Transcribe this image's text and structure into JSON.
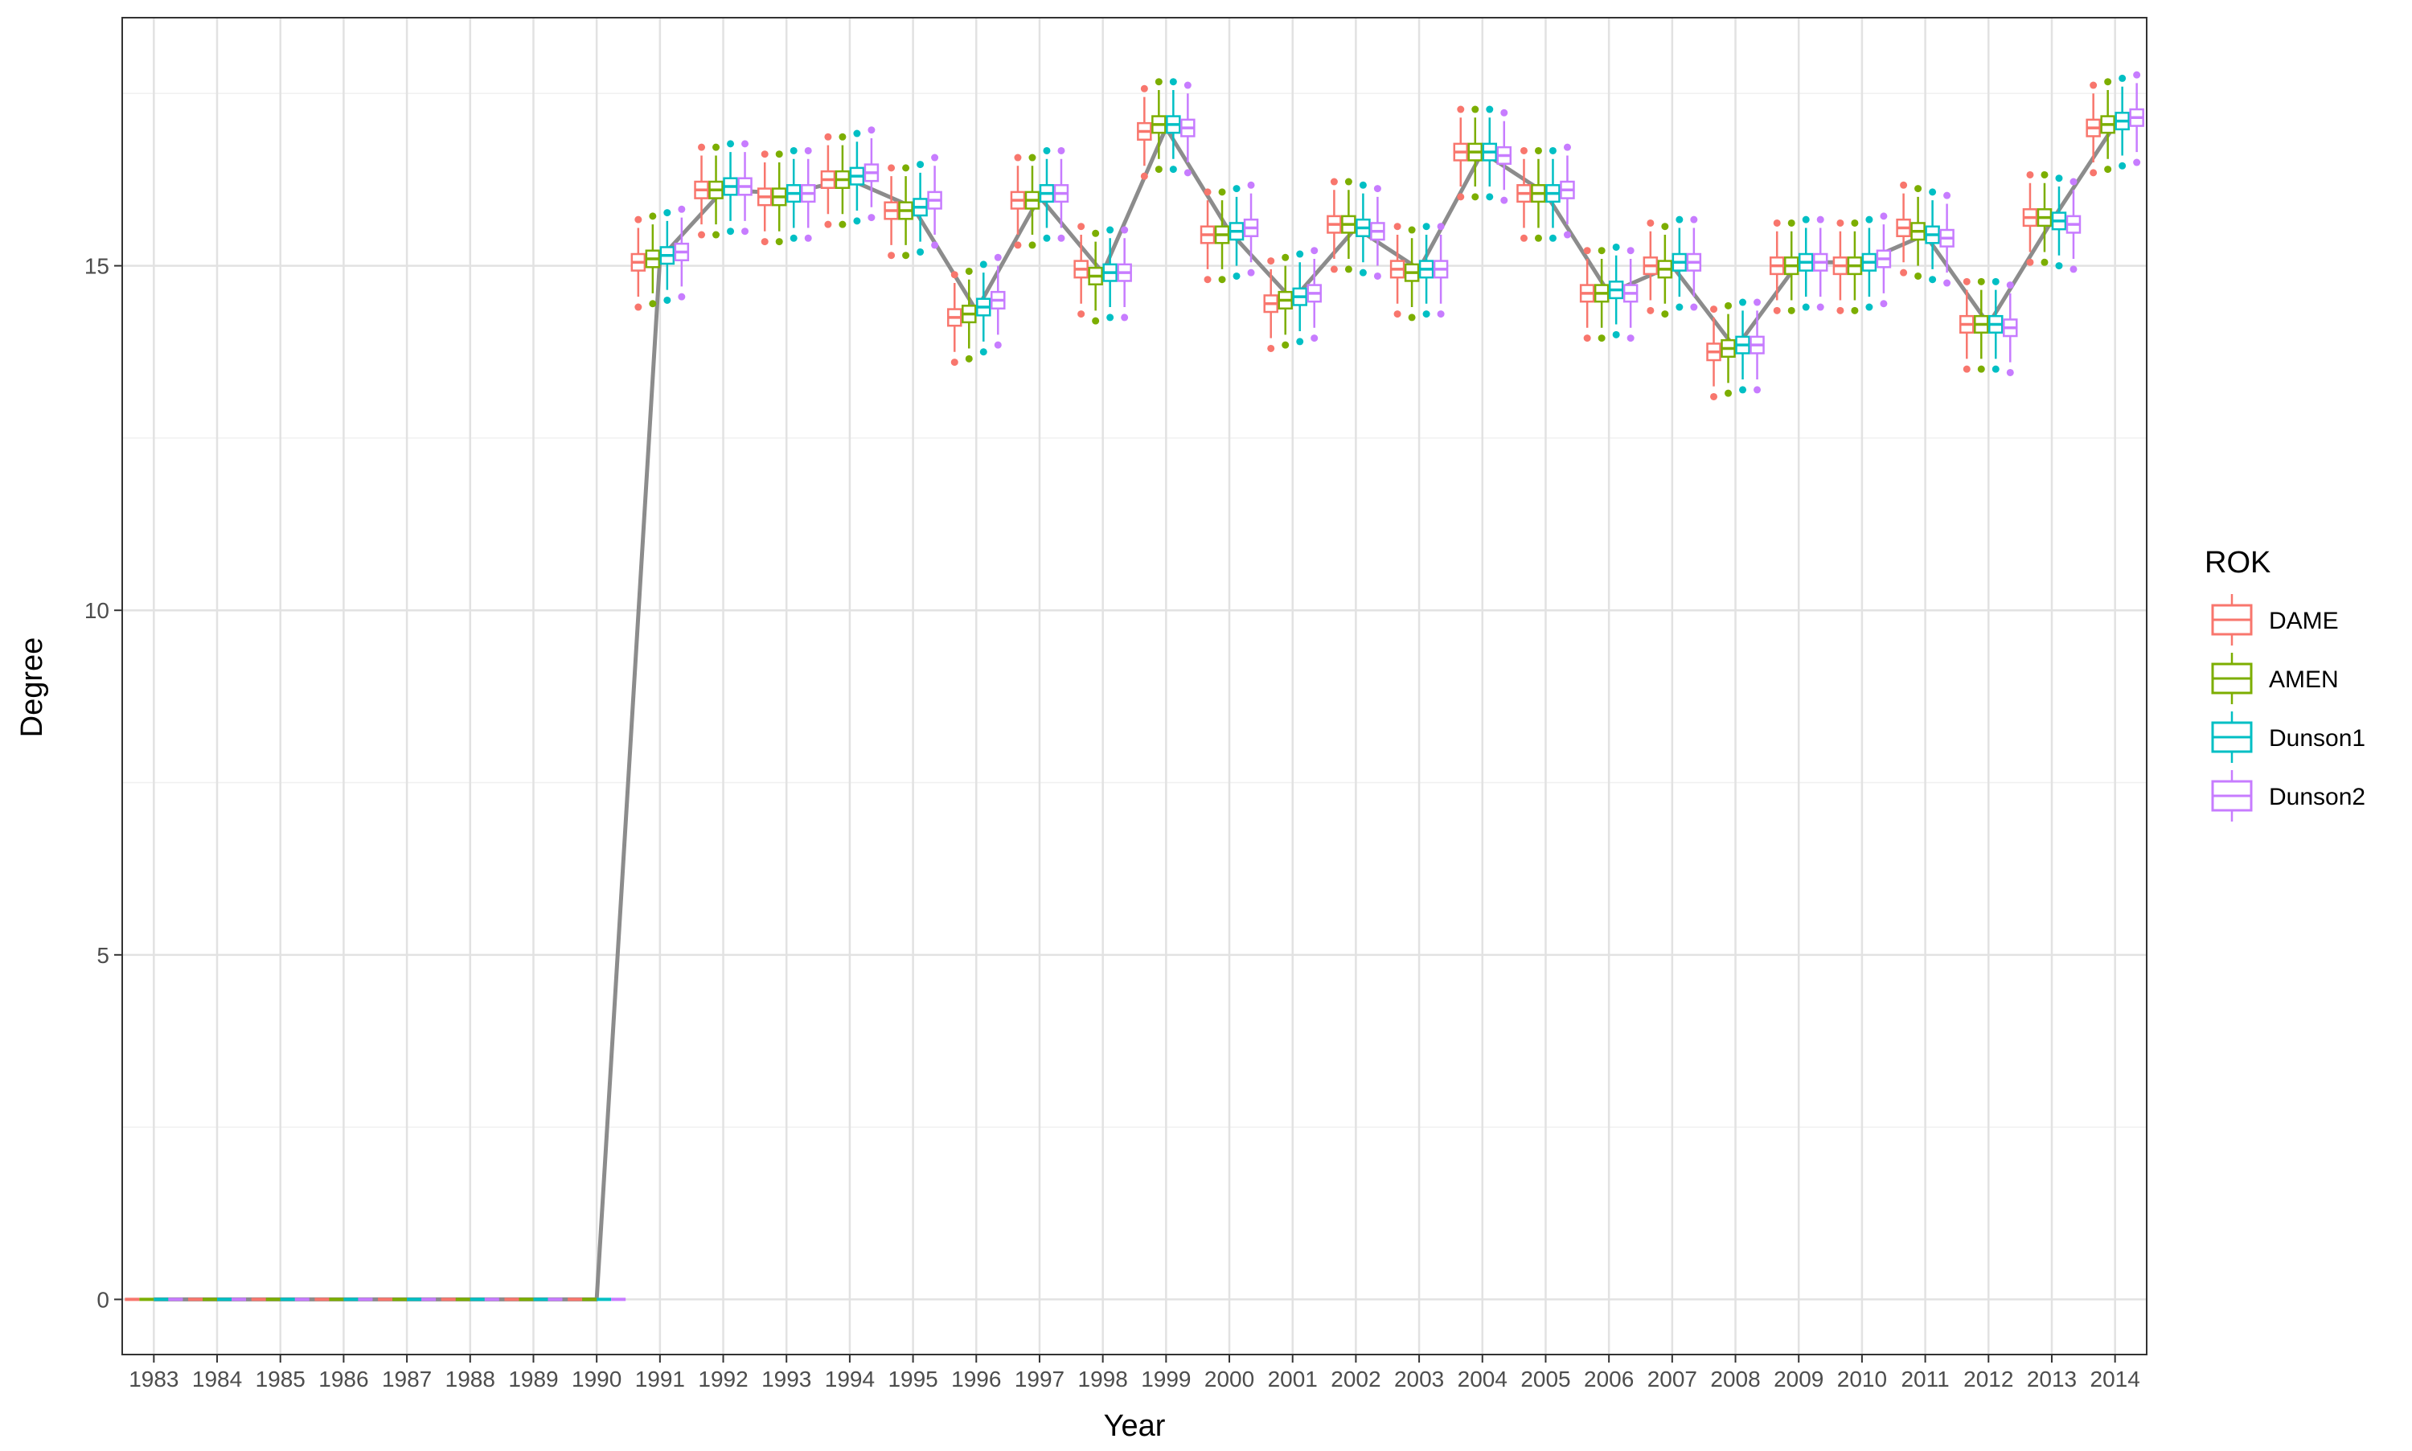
{
  "chart_data": {
    "type": "box",
    "title": "",
    "xlabel": "Year",
    "ylabel": "Degree",
    "ylim": [
      -0.8,
      18.6
    ],
    "yticks": [
      0,
      5,
      10,
      15
    ],
    "grid": true,
    "legend": {
      "title": "ROK",
      "placement": "right"
    },
    "series": [
      {
        "name": "DAME",
        "color": "#F8766D"
      },
      {
        "name": "AMEN",
        "color": "#7CAE00"
      },
      {
        "name": "Dunson1",
        "color": "#00BFC4"
      },
      {
        "name": "Dunson2",
        "color": "#C77CFF"
      }
    ],
    "categories": [
      "1983",
      "1984",
      "1985",
      "1986",
      "1987",
      "1988",
      "1989",
      "1990",
      "1991",
      "1992",
      "1993",
      "1994",
      "1995",
      "1996",
      "1997",
      "1998",
      "1999",
      "2000",
      "2001",
      "2002",
      "2003",
      "2004",
      "2005",
      "2006",
      "2007",
      "2008",
      "2009",
      "2010",
      "2011",
      "2012",
      "2013",
      "2014"
    ],
    "medians": [
      [
        0,
        0,
        0,
        0
      ],
      [
        0,
        0,
        0,
        0
      ],
      [
        0,
        0,
        0,
        0
      ],
      [
        0,
        0,
        0,
        0
      ],
      [
        0,
        0,
        0,
        0
      ],
      [
        0,
        0,
        0,
        0
      ],
      [
        0,
        0,
        0,
        0
      ],
      [
        0,
        0,
        0,
        0
      ],
      [
        15.05,
        15.1,
        15.15,
        15.2
      ],
      [
        16.1,
        16.1,
        16.15,
        16.15
      ],
      [
        16.0,
        16.0,
        16.05,
        16.05
      ],
      [
        16.25,
        16.25,
        16.3,
        16.35
      ],
      [
        15.8,
        15.8,
        15.85,
        15.95
      ],
      [
        14.25,
        14.3,
        14.4,
        14.5
      ],
      [
        15.95,
        15.95,
        16.05,
        16.05
      ],
      [
        14.95,
        14.85,
        14.9,
        14.9
      ],
      [
        16.95,
        17.05,
        17.05,
        17.0
      ],
      [
        15.45,
        15.45,
        15.5,
        15.55
      ],
      [
        14.45,
        14.5,
        14.55,
        14.6
      ],
      [
        15.6,
        15.6,
        15.55,
        15.5
      ],
      [
        14.95,
        14.9,
        14.95,
        14.95
      ],
      [
        16.65,
        16.65,
        16.65,
        16.6
      ],
      [
        16.05,
        16.05,
        16.05,
        16.1
      ],
      [
        14.6,
        14.6,
        14.65,
        14.6
      ],
      [
        15.0,
        14.95,
        15.05,
        15.05
      ],
      [
        13.75,
        13.8,
        13.85,
        13.85
      ],
      [
        15.0,
        15.0,
        15.05,
        15.05
      ],
      [
        15.0,
        15.0,
        15.05,
        15.1
      ],
      [
        15.55,
        15.5,
        15.45,
        15.4
      ],
      [
        14.15,
        14.15,
        14.15,
        14.1
      ],
      [
        15.7,
        15.7,
        15.65,
        15.6
      ],
      [
        17.0,
        17.05,
        17.1,
        17.15
      ]
    ],
    "overall_line": [
      0,
      0,
      0,
      0,
      0,
      0,
      0,
      0,
      15.1,
      16.1,
      16.05,
      16.25,
      15.85,
      14.35,
      16.0,
      14.9,
      17.0,
      15.5,
      14.5,
      15.55,
      14.95,
      16.65,
      16.05,
      14.6,
      15.0,
      13.8,
      15.05,
      15.05,
      15.45,
      14.15,
      15.65,
      17.05
    ],
    "line_color": "#8c8c8c"
  }
}
